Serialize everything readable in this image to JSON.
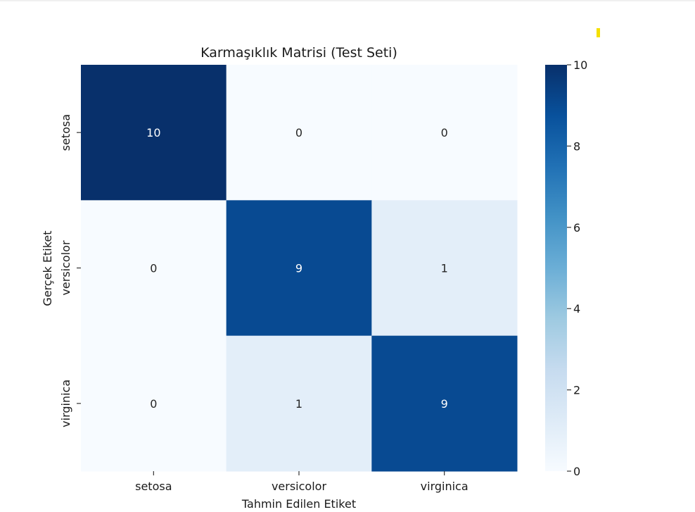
{
  "chart_data": {
    "type": "heatmap",
    "title": "Karmaşıklık Matrisi (Test Seti)",
    "xlabel": "Tahmin Edilen Etiket",
    "ylabel": "Gerçek Etiket",
    "x_categories": [
      "setosa",
      "versicolor",
      "virginica"
    ],
    "y_categories": [
      "setosa",
      "versicolor",
      "virginica"
    ],
    "values": [
      [
        10,
        0,
        0
      ],
      [
        0,
        9,
        1
      ],
      [
        0,
        1,
        9
      ]
    ],
    "colorscale": "Blues",
    "colorbar": {
      "range": [
        0,
        10
      ],
      "ticks": [
        "0",
        "2",
        "4",
        "6",
        "8",
        "10"
      ]
    },
    "grid": false
  }
}
